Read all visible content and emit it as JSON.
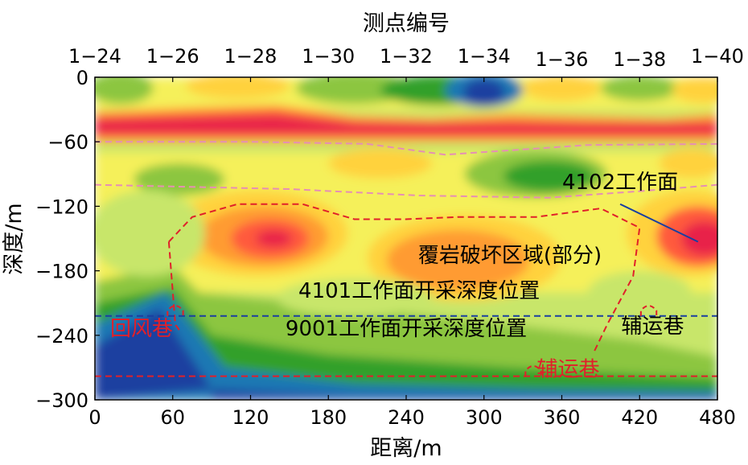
{
  "chart_data": {
    "type": "heatmap",
    "title": "",
    "top_axis": {
      "label": "测点编号",
      "ticks": [
        "1−24",
        "1−26",
        "1−28",
        "1−30",
        "1−32",
        "1−34",
        "1−36",
        "1−38",
        "1−40"
      ],
      "tick_positions_m": [
        0,
        60,
        120,
        180,
        240,
        300,
        360,
        420,
        480
      ]
    },
    "x_axis": {
      "label": "距离/m",
      "range": [
        0,
        480
      ],
      "ticks": [
        0,
        60,
        120,
        180,
        240,
        300,
        360,
        420,
        480
      ]
    },
    "y_axis": {
      "label": "深度/m",
      "range": [
        -300,
        0
      ],
      "ticks": [
        0,
        -60,
        -120,
        -180,
        -240,
        -300
      ]
    },
    "colorscale": [
      "#1a3fa0",
      "#1f78b4",
      "#33a02c",
      "#8cc63f",
      "#c8e66b",
      "#f5f05a",
      "#ffd23c",
      "#ff9b30",
      "#ff5a3c",
      "#e8204a"
    ],
    "annotations": [
      {
        "text": "4102工作面",
        "x": 405,
        "y": -104
      },
      {
        "text": "覆岩破坏区域(部分)",
        "x": 320,
        "y": -172
      },
      {
        "text": "4101工作面开采深度位置",
        "x": 250,
        "y": -205
      },
      {
        "text": "9001工作面开采深度位置",
        "x": 240,
        "y": -240
      },
      {
        "text": "回风巷",
        "x": 36,
        "y": -240
      },
      {
        "text": "辅运巷",
        "x": 430,
        "y": -238
      },
      {
        "text": "辅运巷",
        "x": 365,
        "y": -278
      }
    ],
    "reference_lines": [
      {
        "type": "dashed",
        "color": "#1a3fa0",
        "y": -222
      },
      {
        "type": "dashed",
        "color": "#e0202a",
        "y": -278
      }
    ]
  }
}
